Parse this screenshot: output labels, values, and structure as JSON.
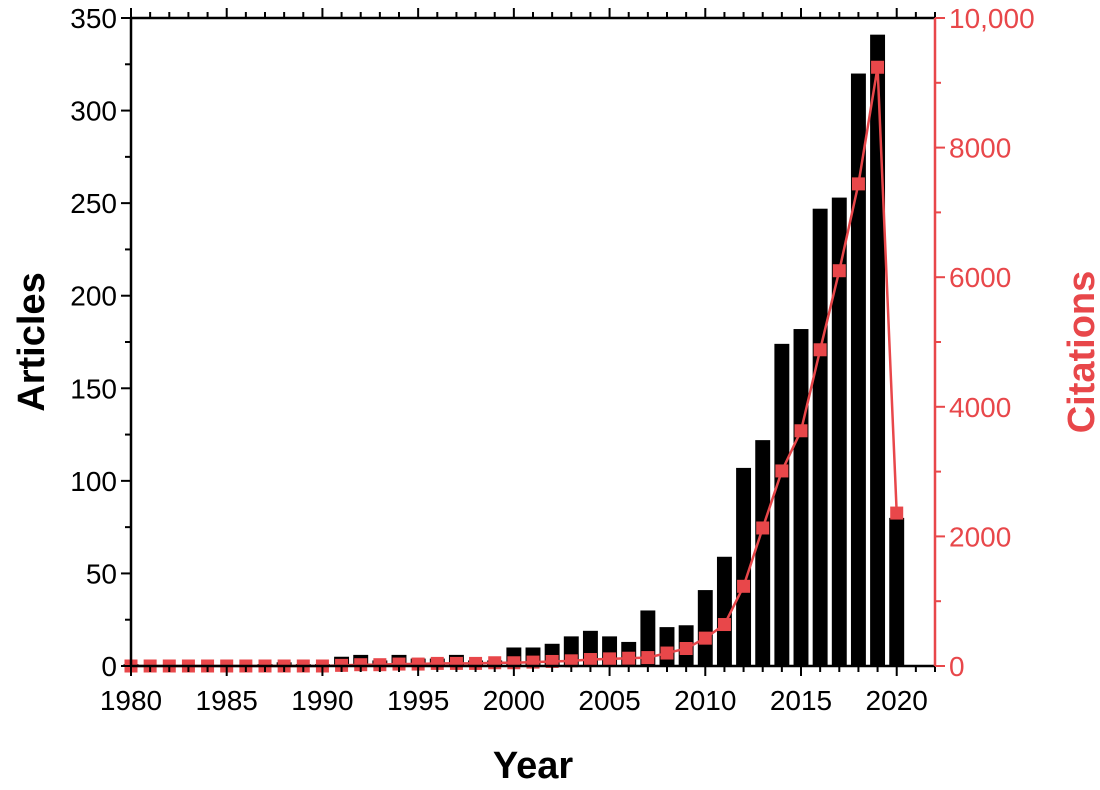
{
  "chart_data": {
    "type": "bar",
    "xlabel": "Year",
    "ylabel_left": "Articles",
    "ylabel_right": "Citations",
    "x_ticks": [
      "1980",
      "1985",
      "1990",
      "1995",
      "2000",
      "2005",
      "2010",
      "2015",
      "2020"
    ],
    "y_left_ticks": [
      "0",
      "50",
      "100",
      "150",
      "200",
      "250",
      "300",
      "350"
    ],
    "y_right_ticks": [
      "0",
      "2000",
      "4000",
      "6000",
      "8000",
      "10,000"
    ],
    "xlim": [
      1980,
      2022
    ],
    "ylim_left": [
      0,
      350
    ],
    "ylim_right": [
      0,
      10000
    ],
    "colors": {
      "articles": "#000000",
      "citations": "#e8474a",
      "axis": "#000000"
    },
    "series": [
      {
        "name": "Articles",
        "type": "bar",
        "axis": "left",
        "x": [
          1980,
          1981,
          1982,
          1983,
          1984,
          1985,
          1986,
          1987,
          1988,
          1989,
          1990,
          1991,
          1992,
          1993,
          1994,
          1995,
          1996,
          1997,
          1998,
          1999,
          2000,
          2001,
          2002,
          2003,
          2004,
          2005,
          2006,
          2007,
          2008,
          2009,
          2010,
          2011,
          2012,
          2013,
          2014,
          2015,
          2016,
          2017,
          2018,
          2019,
          2020
        ],
        "values": [
          1,
          0,
          0,
          0,
          0,
          0,
          0,
          1,
          2,
          1,
          1,
          5,
          6,
          3,
          6,
          4,
          4,
          6,
          3,
          3,
          10,
          10,
          12,
          16,
          19,
          16,
          13,
          30,
          21,
          22,
          41,
          59,
          107,
          122,
          174,
          182,
          247,
          253,
          320,
          341,
          80
        ]
      },
      {
        "name": "Citations",
        "type": "line",
        "axis": "right",
        "x": [
          1980,
          1981,
          1982,
          1983,
          1984,
          1985,
          1986,
          1987,
          1988,
          1989,
          1990,
          1991,
          1992,
          1993,
          1994,
          1995,
          1996,
          1997,
          1998,
          1999,
          2000,
          2001,
          2002,
          2003,
          2004,
          2005,
          2006,
          2007,
          2008,
          2009,
          2010,
          2011,
          2012,
          2013,
          2014,
          2015,
          2016,
          2017,
          2018,
          2019,
          2020
        ],
        "values": [
          0,
          0,
          0,
          0,
          0,
          0,
          0,
          0,
          0,
          0,
          0,
          10,
          20,
          20,
          30,
          30,
          40,
          40,
          40,
          50,
          50,
          60,
          70,
          80,
          100,
          110,
          120,
          130,
          200,
          270,
          430,
          640,
          1230,
          2130,
          3010,
          3630,
          4880,
          6100,
          7440,
          9240,
          2360
        ]
      }
    ]
  }
}
